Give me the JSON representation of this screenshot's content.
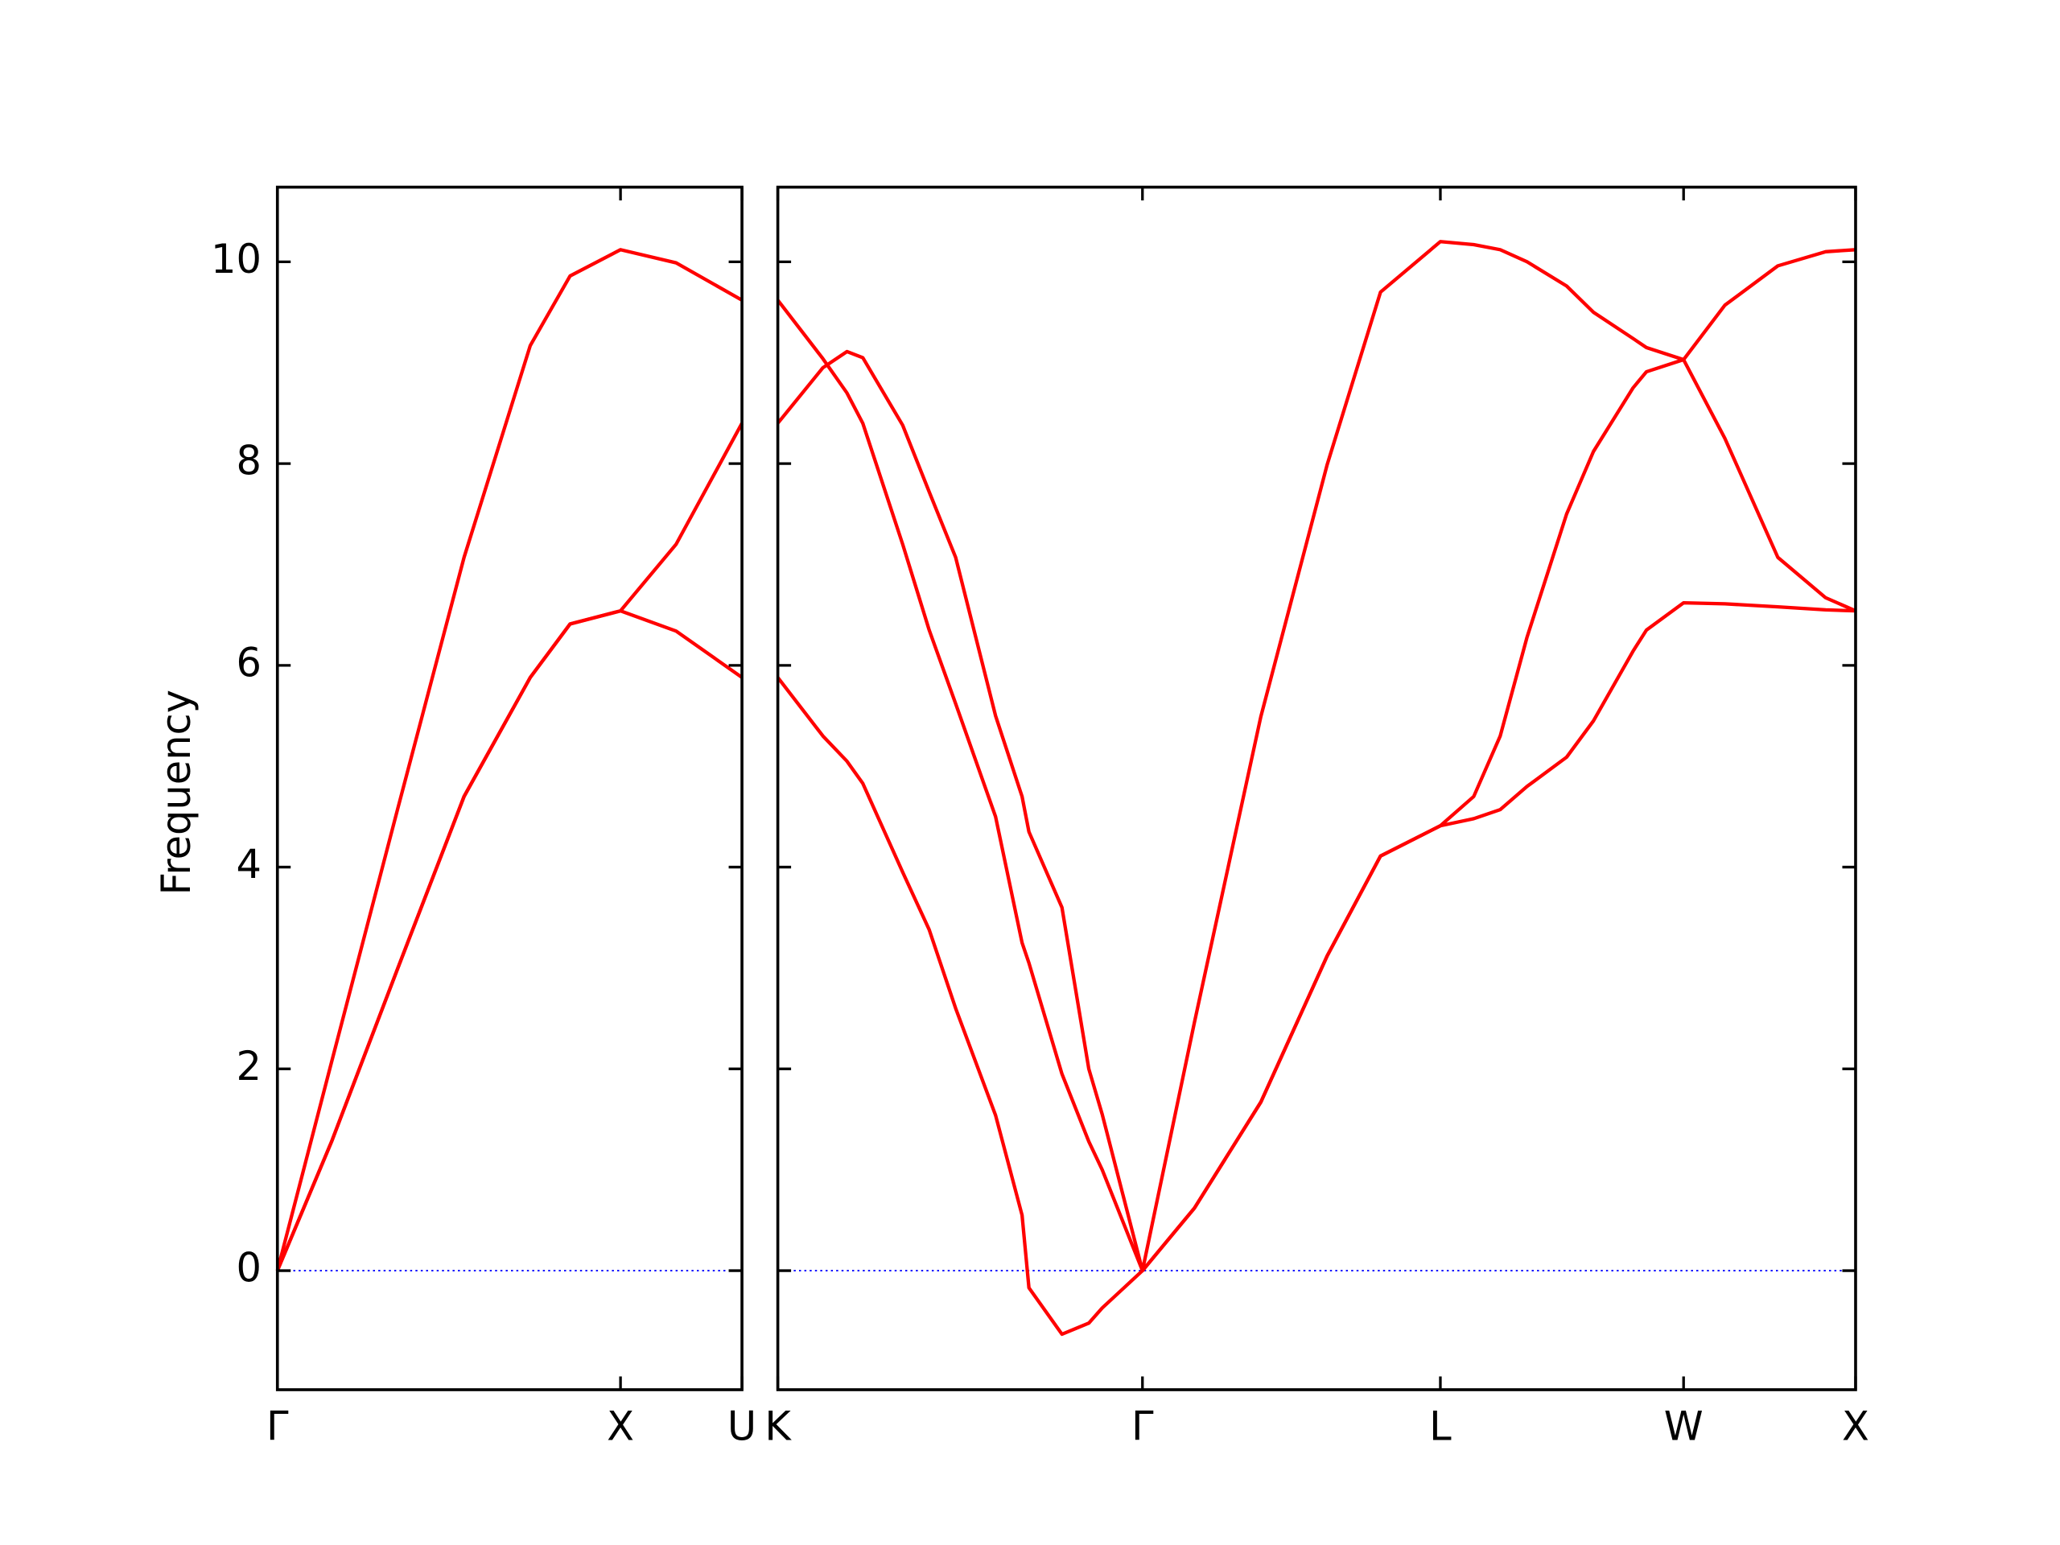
{
  "chart_data": [
    {
      "type": "line",
      "ylabel": "Frequency",
      "x": [
        0,
        0.158,
        0.35,
        0.544,
        0.737,
        0.853,
        1,
        1.162,
        1.354
      ],
      "series": [
        {
          "color": "#ff0000",
          "values": [
            0,
            1.28,
            2.99,
            4.7,
            5.88,
            6.41,
            6.54,
            6.34,
            5.88
          ]
        },
        {
          "color": "#ff0000",
          "values": [
            0,
            1.28,
            2.99,
            4.7,
            5.88,
            6.41,
            6.54,
            7.2,
            8.4
          ]
        },
        {
          "color": "#ff0000",
          "values": [
            0,
            2.07,
            4.57,
            7.07,
            9.17,
            9.86,
            10.12,
            9.99,
            9.62
          ]
        }
      ],
      "xlim": [
        0,
        1.354
      ],
      "ylim": [
        -1.18,
        10.74
      ],
      "xticks": [
        {
          "value": 0,
          "label": "Γ"
        },
        {
          "value": 1,
          "label": "X"
        },
        {
          "value": 1.354,
          "label": "U"
        }
      ],
      "yticks": [
        0,
        2,
        4,
        6,
        8,
        10
      ]
    },
    {
      "type": "line",
      "x": [
        1.354,
        1.485,
        1.555,
        1.601,
        1.717,
        1.794,
        1.871,
        1.987,
        2.064,
        2.084,
        2.18,
        2.258,
        2.297,
        2.414,
        2.565,
        2.758,
        2.951,
        3.106,
        3.28,
        3.377,
        3.454,
        3.532,
        3.647,
        3.725,
        3.84,
        3.879,
        3.987,
        4.107,
        4.261,
        4.4,
        4.487
      ],
      "series": [
        {
          "color": "#ff0000",
          "values": [
            5.88,
            5.3,
            5.05,
            4.83,
            3.95,
            3.38,
            2.6,
            1.54,
            0.55,
            -0.17,
            -0.63,
            -0.52,
            -0.37,
            0,
            0.62,
            1.67,
            3.12,
            4.11,
            4.41,
            4.48,
            4.57,
            4.8,
            5.09,
            5.45,
            6.14,
            6.35,
            6.62,
            6.61,
            6.58,
            6.55,
            6.54
          ]
        },
        {
          "color": "#ff0000",
          "values": [
            8.4,
            8.95,
            9.11,
            9.05,
            8.38,
            7.72,
            7.07,
            5.5,
            4.7,
            4.35,
            3.6,
            2.0,
            1.55,
            0,
            0.62,
            1.67,
            3.12,
            4.11,
            4.41,
            4.7,
            5.3,
            6.28,
            7.5,
            8.12,
            8.75,
            8.91,
            9.03,
            8.25,
            7.07,
            6.67,
            6.54
          ]
        },
        {
          "color": "#ff0000",
          "values": [
            9.62,
            9.04,
            8.7,
            8.4,
            7.2,
            6.35,
            5.62,
            4.5,
            3.25,
            3.05,
            1.95,
            1.28,
            1.0,
            0,
            2.46,
            5.49,
            7.99,
            9.7,
            10.2,
            10.17,
            10.12,
            10.0,
            9.76,
            9.5,
            9.24,
            9.15,
            9.03,
            9.57,
            9.96,
            10.1,
            10.12
          ]
        }
      ],
      "xlim": [
        1.354,
        4.487
      ],
      "ylim": [
        -1.18,
        10.74
      ],
      "xticks": [
        {
          "value": 1.354,
          "label": "K"
        },
        {
          "value": 2.414,
          "label": "Γ"
        },
        {
          "value": 3.28,
          "label": "L"
        },
        {
          "value": 3.987,
          "label": "W"
        },
        {
          "value": 4.487,
          "label": "X"
        }
      ]
    }
  ]
}
